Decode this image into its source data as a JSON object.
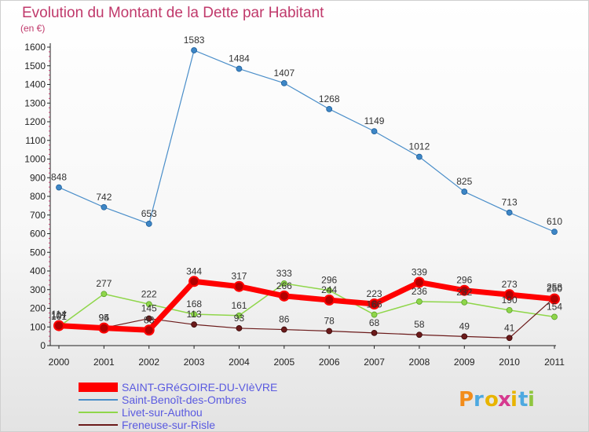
{
  "chart_data": {
    "type": "line",
    "title": "Evolution du Montant de la Dette par Habitant",
    "unit_label": "(en €)",
    "x": [
      "2000",
      "2001",
      "2002",
      "2003",
      "2004",
      "2005",
      "2006",
      "2007",
      "2008",
      "2009",
      "2010",
      "2011"
    ],
    "ylim": [
      0,
      1600
    ],
    "yticks": [
      0,
      100,
      200,
      300,
      400,
      500,
      600,
      700,
      800,
      900,
      1000,
      1100,
      1200,
      1300,
      1400,
      1500,
      1600
    ],
    "grid": false,
    "legend_placement": "bottom-left",
    "series": [
      {
        "name": "SAINT-GRéGOIRE-DU-VIèVRE",
        "color": "#ff0000",
        "values": [
          107,
          94,
          83,
          344,
          317,
          266,
          244,
          223,
          339,
          296,
          273,
          250
        ]
      },
      {
        "name": "Saint-Benoît-des-Ombres",
        "color": "#4a8ec9",
        "values": [
          848,
          742,
          653,
          1583,
          1484,
          1407,
          1268,
          1149,
          1012,
          825,
          713,
          610
        ]
      },
      {
        "name": "Livet-sur-Authou",
        "color": "#8fd64a",
        "values": [
          101,
          277,
          222,
          168,
          161,
          333,
          296,
          166,
          236,
          232,
          190,
          154
        ]
      },
      {
        "name": "Freneuse-sur-Risle",
        "color": "#6b1a1a",
        "values": [
          114,
          95,
          145,
          113,
          93,
          86,
          78,
          68,
          58,
          49,
          41,
          258
        ]
      }
    ],
    "label_texts": [
      [
        "107",
        "94",
        "83",
        "344",
        "317",
        "266",
        "244",
        "223",
        "339",
        "296",
        "273",
        "250"
      ],
      [
        "848",
        "742",
        "653",
        "1583",
        "1484",
        "1407",
        "1268",
        "1149",
        "1012",
        "825",
        "713",
        "610"
      ],
      [
        "101",
        "277",
        "222",
        "168",
        "161",
        "333",
        "296",
        "166",
        "236",
        "232",
        "190",
        "154"
      ],
      [
        "114",
        "95",
        "145",
        "113",
        "93",
        "86",
        "78",
        "68",
        "58",
        "49",
        "41",
        "258"
      ]
    ]
  },
  "logo": {
    "text": "Proxiti",
    "letter_colors": [
      "#f28c1a",
      "#4da9e0",
      "#e8b400",
      "#d63a8f",
      "#e8b400",
      "#4da9e0",
      "#8fc63f"
    ]
  }
}
